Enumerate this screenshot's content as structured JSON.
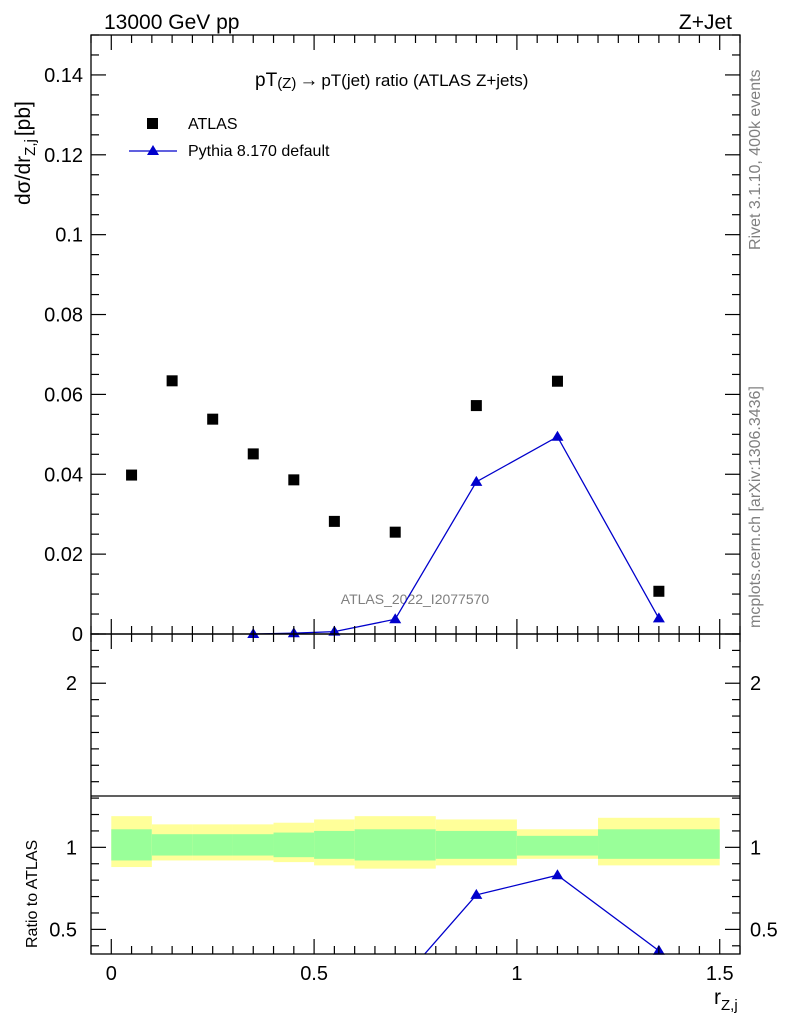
{
  "header": {
    "left": "13000 GeV pp",
    "right": "Z+Jet"
  },
  "side_labels": {
    "rivet": "Rivet 3.1.10,  400k events",
    "mcplots": "mcplots.cern.ch [arXiv:1306.3436]"
  },
  "chart_data": [
    {
      "type": "scatter",
      "title": "pT(Z) → pT(jet) ratio (ATLAS Z+jets)",
      "title_main": "pT",
      "title_sub1": "(Z)",
      "title_arrow": "→",
      "title_rest": "pT(jet) ratio (ATLAS Z+jets)",
      "ylabel": "dσ/dr",
      "ylabel_sub": "Z,j",
      "ylabel_unit": "[pb]",
      "watermark": "ATLAS_2022_I2077570",
      "xlim": [
        -0.05,
        1.55
      ],
      "ylim": [
        0,
        0.15
      ],
      "yticks": [
        0,
        0.02,
        0.04,
        0.06,
        0.08,
        0.1,
        0.12,
        0.14
      ],
      "ytick_labels": [
        "0",
        "0.02",
        "0.04",
        "0.06",
        "0.08",
        "0.1",
        "0.12",
        "0.14"
      ],
      "series": [
        {
          "name": "ATLAS",
          "marker": "square",
          "color": "#000000",
          "x": [
            0.05,
            0.15,
            0.25,
            0.35,
            0.45,
            0.55,
            0.7,
            0.9,
            1.1,
            1.35
          ],
          "y": [
            0.0398,
            0.0634,
            0.0538,
            0.0451,
            0.0386,
            0.0282,
            0.0255,
            0.0572,
            0.0633,
            0.0107
          ]
        },
        {
          "name": "Pythia 8.170 default",
          "marker": "triangle",
          "color": "#0000cc",
          "x": [
            0.35,
            0.45,
            0.55,
            0.7,
            0.9,
            1.1,
            1.35
          ],
          "y": [
            0.0,
            0.0002,
            0.0006,
            0.0037,
            0.0381,
            0.0494,
            0.0039
          ]
        }
      ],
      "legend_position": "top-left"
    },
    {
      "type": "line",
      "ylabel": "Ratio to ATLAS",
      "xlabel": "r",
      "xlabel_sub": "Z,j",
      "xlim": [
        -0.05,
        1.55
      ],
      "ylim": [
        0.35,
        2.3
      ],
      "xticks": [
        0,
        0.5,
        1,
        1.5
      ],
      "xtick_labels": [
        "0",
        "0.5",
        "1",
        "1.5"
      ],
      "yticks": [
        0.5,
        1,
        2
      ],
      "ytick_labels": [
        "0.5",
        "1",
        "2"
      ],
      "bands": {
        "edges": [
          0,
          0.1,
          0.2,
          0.3,
          0.4,
          0.5,
          0.6,
          0.8,
          1.0,
          1.2,
          1.5
        ],
        "yellow_lo": [
          0.88,
          0.92,
          0.92,
          0.92,
          0.91,
          0.89,
          0.87,
          0.89,
          0.93,
          0.89
        ],
        "yellow_hi": [
          1.19,
          1.14,
          1.14,
          1.14,
          1.15,
          1.17,
          1.19,
          1.17,
          1.11,
          1.18
        ],
        "green_lo": [
          0.92,
          0.95,
          0.95,
          0.95,
          0.94,
          0.93,
          0.92,
          0.93,
          0.95,
          0.93
        ],
        "green_hi": [
          1.11,
          1.08,
          1.08,
          1.08,
          1.09,
          1.1,
          1.11,
          1.1,
          1.07,
          1.11
        ]
      },
      "series": [
        {
          "name": "Pythia 8.170 default",
          "color": "#0000cc",
          "x": [
            0.7,
            0.9,
            1.1,
            1.35
          ],
          "y": [
            0.145,
            0.71,
            0.83,
            0.37
          ]
        }
      ],
      "colors": {
        "yellow": "#ffff99",
        "green": "#99ff99"
      }
    }
  ]
}
